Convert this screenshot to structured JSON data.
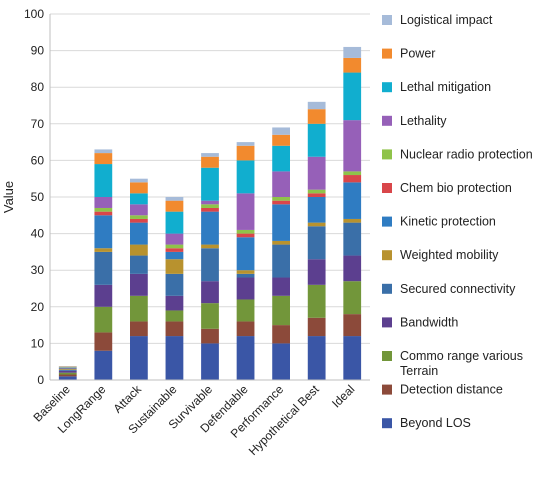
{
  "chart_data": {
    "type": "bar",
    "stacked": true,
    "title": "",
    "xlabel": "",
    "ylabel": "Value",
    "ylim": [
      0,
      100
    ],
    "yticks": [
      0,
      10,
      20,
      30,
      40,
      50,
      60,
      70,
      80,
      90,
      100
    ],
    "grid": true,
    "legend_position": "right",
    "categories": [
      "Baseline",
      "LongRange",
      "Attack",
      "Sustainable",
      "Survivable",
      "Defendable",
      "Performance",
      "Hypothetical Best",
      "Ideal"
    ],
    "series": [
      {
        "name": "Beyond LOS",
        "color": "#3a56a6",
        "values": [
          1,
          8,
          12,
          12,
          10,
          12,
          10,
          12,
          12
        ]
      },
      {
        "name": "Detection distance",
        "color": "#8c4a3a",
        "values": [
          0.5,
          5,
          4,
          4,
          4,
          4,
          5,
          5,
          6
        ]
      },
      {
        "name": "Commo range various Terrain",
        "color": "#72963a",
        "values": [
          0.5,
          7,
          7,
          3,
          7,
          6,
          8,
          9,
          9
        ]
      },
      {
        "name": "Bandwidth",
        "color": "#5c3f8f",
        "values": [
          0.5,
          6,
          6,
          4,
          6,
          6,
          5,
          7,
          7
        ]
      },
      {
        "name": "Secured connectivity",
        "color": "#3a6fa8",
        "values": [
          0.3,
          9,
          5,
          6,
          9,
          1,
          9,
          9,
          9
        ]
      },
      {
        "name": "Weighted mobility",
        "color": "#b8922e",
        "values": [
          0.2,
          1,
          3,
          4,
          1,
          1,
          1,
          1,
          1
        ]
      },
      {
        "name": "Kinetic protection",
        "color": "#2f7cc2",
        "values": [
          0.2,
          9,
          6,
          2,
          9,
          9,
          10,
          7,
          10
        ]
      },
      {
        "name": "Chem bio protection",
        "color": "#d9464a",
        "values": [
          0.1,
          1,
          1,
          1,
          1,
          1,
          1,
          1,
          2
        ]
      },
      {
        "name": "Nuclear radio protection",
        "color": "#8fc34a",
        "values": [
          0.1,
          1,
          1,
          1,
          1,
          1,
          1,
          1,
          1
        ]
      },
      {
        "name": "Lethality",
        "color": "#9660b8",
        "values": [
          0.1,
          3,
          3,
          3,
          1,
          10,
          7,
          9,
          14
        ]
      },
      {
        "name": "Lethal mitigation",
        "color": "#11aecf",
        "values": [
          0.1,
          9,
          3,
          6,
          9,
          9,
          7,
          9,
          13
        ]
      },
      {
        "name": "Power",
        "color": "#f28a2e",
        "values": [
          0.1,
          3,
          3,
          3,
          3,
          4,
          3,
          4,
          4
        ]
      },
      {
        "name": "Logistical impact",
        "color": "#a6bbd9",
        "values": [
          0.1,
          1,
          1,
          1,
          1,
          1,
          2,
          2,
          3
        ]
      }
    ]
  }
}
